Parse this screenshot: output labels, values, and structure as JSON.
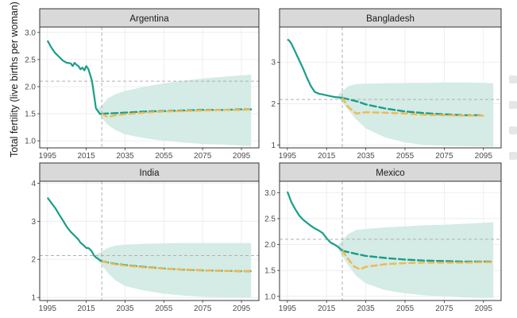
{
  "ylabel": "Total fertility (live births per woman)",
  "chart_data": [
    {
      "type": "line",
      "title": "Argentina",
      "xticks": [
        1995,
        2015,
        2035,
        2055,
        2075,
        2095
      ],
      "yticks": [
        1.0,
        1.5,
        2.0,
        2.5,
        3.0
      ],
      "ytick_labels": [
        "1.0",
        "1.5",
        "2.0",
        "2.5",
        "3.0"
      ],
      "xlim": [
        1991,
        2104
      ],
      "ylim": [
        0.87,
        3.1
      ],
      "replacement_level": 2.1,
      "projection_start": 2023,
      "observed": {
        "x": [
          1995,
          1997,
          1999,
          2001,
          2003,
          2005,
          2007,
          2008,
          2009,
          2010,
          2011,
          2012,
          2013,
          2014,
          2015,
          2016,
          2017,
          2018,
          2019,
          2020,
          2021,
          2022,
          2023
        ],
        "y": [
          2.85,
          2.72,
          2.62,
          2.55,
          2.48,
          2.44,
          2.43,
          2.38,
          2.44,
          2.4,
          2.38,
          2.32,
          2.35,
          2.3,
          2.38,
          2.33,
          2.22,
          2.1,
          1.85,
          1.6,
          1.55,
          1.5,
          1.5
        ]
      },
      "series": [
        {
          "name": "",
          "style": "dash-teal",
          "x": [
            2023,
            2035,
            2045,
            2055,
            2065,
            2075,
            2085,
            2095,
            2100
          ],
          "y": [
            1.5,
            1.52,
            1.54,
            1.55,
            1.56,
            1.57,
            1.57,
            1.58,
            1.58
          ]
        },
        {
          "name": "",
          "style": "dash-orange",
          "x": [
            2023,
            2026,
            2030,
            2035,
            2045,
            2055,
            2065,
            2075,
            2085,
            2095,
            2100
          ],
          "y": [
            1.5,
            1.44,
            1.47,
            1.49,
            1.52,
            1.54,
            1.55,
            1.56,
            1.57,
            1.57,
            1.58
          ]
        }
      ],
      "interval": {
        "x": [
          2021,
          2023,
          2026,
          2030,
          2035,
          2045,
          2055,
          2065,
          2075,
          2085,
          2095,
          2100
        ],
        "lower": [
          1.5,
          1.42,
          1.3,
          1.2,
          1.12,
          1.05,
          1.0,
          0.97,
          0.94,
          0.93,
          0.91,
          0.9
        ],
        "upper": [
          1.6,
          1.65,
          1.78,
          1.86,
          1.92,
          2.0,
          2.06,
          2.11,
          2.15,
          2.18,
          2.21,
          2.22
        ]
      }
    },
    {
      "type": "line",
      "title": "Bangladesh",
      "xticks": [
        1995,
        2015,
        2035,
        2055,
        2075,
        2095
      ],
      "yticks": [
        1,
        2,
        3
      ],
      "ytick_labels": [
        "1",
        "2",
        "3"
      ],
      "xlim": [
        1991,
        2104
      ],
      "ylim": [
        0.93,
        3.85
      ],
      "replacement_level": 2.1,
      "projection_start": 2023,
      "observed": {
        "x": [
          1995,
          1996,
          1997,
          1999,
          2001,
          2003,
          2005,
          2007,
          2009,
          2011,
          2013,
          2015,
          2017,
          2019,
          2021,
          2023
        ],
        "y": [
          3.55,
          3.52,
          3.45,
          3.25,
          3.05,
          2.85,
          2.62,
          2.42,
          2.28,
          2.24,
          2.22,
          2.2,
          2.18,
          2.16,
          2.15,
          2.14
        ]
      },
      "series": [
        {
          "name": "",
          "style": "dash-teal",
          "x": [
            2023,
            2030,
            2035,
            2045,
            2055,
            2065,
            2075,
            2085,
            2095
          ],
          "y": [
            2.14,
            2.06,
            1.98,
            1.88,
            1.81,
            1.77,
            1.74,
            1.72,
            1.72
          ]
        },
        {
          "name": "",
          "style": "dash-orange",
          "x": [
            2023,
            2026,
            2030,
            2035,
            2045,
            2055,
            2065,
            2075,
            2085,
            2095
          ],
          "y": [
            2.14,
            1.92,
            1.76,
            1.79,
            1.78,
            1.76,
            1.73,
            1.72,
            1.71,
            1.71
          ]
        }
      ],
      "interval": {
        "x": [
          2021,
          2023,
          2026,
          2030,
          2035,
          2045,
          2055,
          2065,
          2075,
          2085,
          2095,
          2100
        ],
        "lower": [
          2.12,
          2.02,
          1.85,
          1.62,
          1.4,
          1.18,
          1.06,
          1.0,
          0.98,
          0.97,
          0.96,
          0.96
        ],
        "upper": [
          2.22,
          2.3,
          2.42,
          2.47,
          2.48,
          2.49,
          2.5,
          2.5,
          2.51,
          2.51,
          2.5,
          2.49
        ]
      }
    },
    {
      "type": "line",
      "title": "India",
      "xticks": [
        1995,
        2015,
        2035,
        2055,
        2075,
        2095
      ],
      "yticks": [
        1,
        2,
        3,
        4
      ],
      "ytick_labels": [
        "1",
        "2",
        "3",
        "4"
      ],
      "xlim": [
        1991,
        2104
      ],
      "ylim": [
        0.92,
        4.05
      ],
      "replacement_level": 2.1,
      "projection_start": 2023,
      "observed": {
        "x": [
          1995,
          1997,
          1999,
          2001,
          2003,
          2005,
          2007,
          2009,
          2011,
          2012,
          2013,
          2014,
          2015,
          2016,
          2017,
          2018,
          2019,
          2020,
          2021,
          2022,
          2023
        ],
        "y": [
          3.62,
          3.48,
          3.35,
          3.18,
          3.02,
          2.85,
          2.72,
          2.62,
          2.52,
          2.44,
          2.4,
          2.35,
          2.3,
          2.3,
          2.26,
          2.2,
          2.1,
          2.05,
          2.02,
          1.98,
          1.95
        ]
      },
      "series": [
        {
          "name": "",
          "style": "dash-teal",
          "x": [
            2023,
            2030,
            2035,
            2045,
            2055,
            2065,
            2075,
            2085,
            2095,
            2100
          ],
          "y": [
            1.95,
            1.88,
            1.85,
            1.8,
            1.76,
            1.73,
            1.71,
            1.7,
            1.69,
            1.69
          ]
        },
        {
          "name": "",
          "style": "dash-orange",
          "x": [
            2023,
            2030,
            2035,
            2045,
            2055,
            2065,
            2075,
            2085,
            2095,
            2100
          ],
          "y": [
            1.95,
            1.87,
            1.84,
            1.79,
            1.76,
            1.73,
            1.71,
            1.7,
            1.69,
            1.69
          ]
        }
      ],
      "interval": {
        "x": [
          2020,
          2023,
          2026,
          2030,
          2035,
          2045,
          2055,
          2065,
          2075,
          2085,
          2095,
          2100
        ],
        "lower": [
          2.02,
          1.85,
          1.65,
          1.45,
          1.3,
          1.18,
          1.1,
          1.05,
          1.02,
          1.0,
          0.99,
          0.99
        ],
        "upper": [
          2.12,
          2.2,
          2.3,
          2.36,
          2.39,
          2.41,
          2.42,
          2.43,
          2.43,
          2.43,
          2.43,
          2.43
        ]
      }
    },
    {
      "type": "line",
      "title": "Mexico",
      "xticks": [
        1995,
        2015,
        2035,
        2055,
        2075,
        2095
      ],
      "yticks": [
        1.0,
        1.5,
        2.0,
        2.5,
        3.0
      ],
      "ytick_labels": [
        "1.0",
        "1.5",
        "2.0",
        "2.5",
        "3.0"
      ],
      "xlim": [
        1991,
        2104
      ],
      "ylim": [
        0.92,
        3.22
      ],
      "replacement_level": 2.1,
      "projection_start": 2023,
      "observed": {
        "x": [
          1995,
          1997,
          1999,
          2001,
          2003,
          2005,
          2007,
          2009,
          2011,
          2013,
          2015,
          2017,
          2019,
          2021,
          2023
        ],
        "y": [
          3.02,
          2.82,
          2.68,
          2.56,
          2.48,
          2.42,
          2.36,
          2.31,
          2.27,
          2.22,
          2.12,
          2.04,
          2.0,
          1.95,
          1.88
        ]
      },
      "series": [
        {
          "name": "",
          "style": "dash-teal",
          "x": [
            2023,
            2030,
            2035,
            2045,
            2055,
            2065,
            2075,
            2085,
            2095,
            2100
          ],
          "y": [
            1.88,
            1.82,
            1.78,
            1.74,
            1.71,
            1.69,
            1.68,
            1.67,
            1.67,
            1.67
          ]
        },
        {
          "name": "",
          "style": "dash-orange",
          "x": [
            2023,
            2026,
            2029,
            2032,
            2035,
            2045,
            2055,
            2065,
            2075,
            2085,
            2095,
            2100
          ],
          "y": [
            1.88,
            1.72,
            1.58,
            1.52,
            1.57,
            1.62,
            1.64,
            1.65,
            1.65,
            1.65,
            1.66,
            1.66
          ]
        }
      ],
      "interval": {
        "x": [
          2021,
          2023,
          2026,
          2030,
          2035,
          2045,
          2055,
          2065,
          2075,
          2085,
          2095,
          2100
        ],
        "lower": [
          1.9,
          1.78,
          1.6,
          1.4,
          1.25,
          1.12,
          1.06,
          1.02,
          1.0,
          0.98,
          0.97,
          0.97
        ],
        "upper": [
          2.0,
          2.08,
          2.2,
          2.28,
          2.3,
          2.33,
          2.35,
          2.37,
          2.38,
          2.4,
          2.42,
          2.43
        ]
      }
    }
  ]
}
